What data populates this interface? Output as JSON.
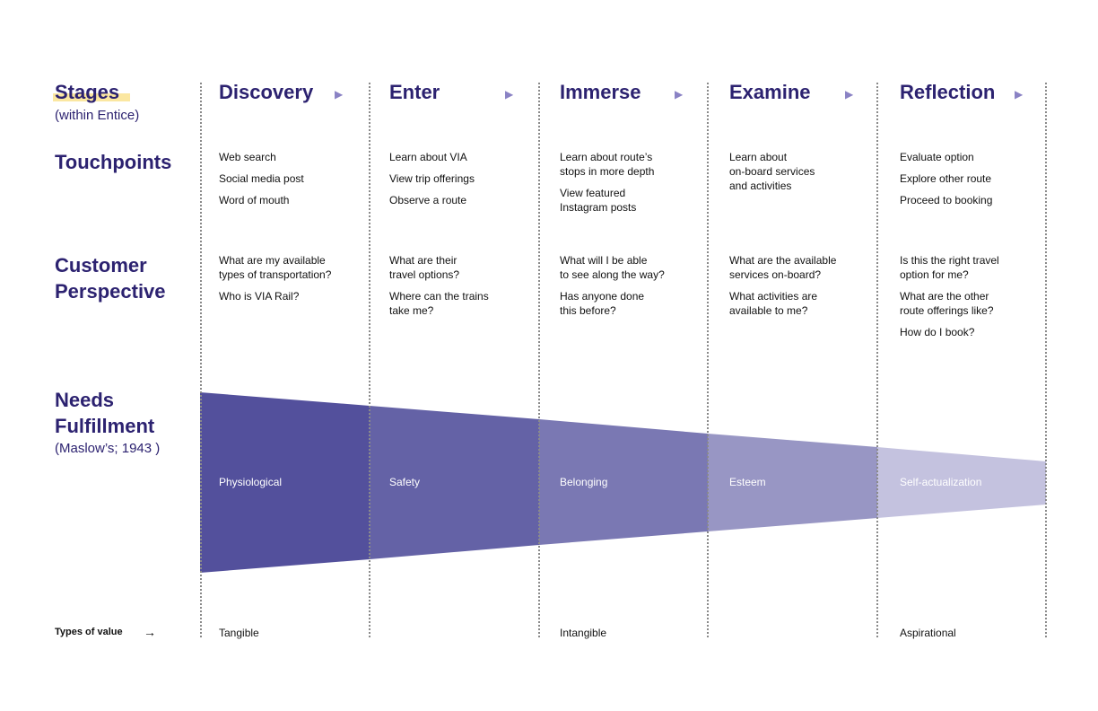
{
  "rows": {
    "stages": {
      "title": "Stages",
      "subtitle": "(within Entice)"
    },
    "touchpoints": "Touchpoints",
    "perspective": "Customer\nPerspective",
    "needs": {
      "title": "Needs\nFulfillment",
      "subtitle": "(Maslow’s; 1943 )"
    },
    "types": {
      "title": "Types of value",
      "arrow": "→"
    }
  },
  "stage_arrow": "▶",
  "stages": [
    {
      "name": "Discovery",
      "touchpoints": [
        "Web search",
        "Social media post",
        "Word of mouth"
      ],
      "questions": [
        "What are my available\ntypes of transportation?",
        "Who is VIA Rail?"
      ],
      "need": "Physiological",
      "value": "Tangible"
    },
    {
      "name": "Enter",
      "touchpoints": [
        "Learn about VIA",
        "View trip offerings",
        "Observe a route"
      ],
      "questions": [
        "What are their\ntravel options?",
        "Where can the trains\ntake me?"
      ],
      "need": "Safety",
      "value": ""
    },
    {
      "name": "Immerse",
      "touchpoints": [
        "Learn about route’s\nstops in more depth",
        "View featured\nInstagram posts"
      ],
      "questions": [
        "What will I be able\nto see along the way?",
        "Has anyone done\nthis before?"
      ],
      "need": "Belonging",
      "value": "Intangible"
    },
    {
      "name": "Examine",
      "touchpoints": [
        "Learn about\non-board services\nand activities"
      ],
      "questions": [
        "What are the available\nservices on-board?",
        "What activities are\navailable to me?"
      ],
      "need": "Esteem",
      "value": ""
    },
    {
      "name": "Reflection",
      "touchpoints": [
        "Evaluate option",
        "Explore other route",
        "Proceed to booking"
      ],
      "questions": [
        "Is this the right travel\noption for me?",
        "What are the other\nroute offerings like?",
        "How do I book?"
      ],
      "need": "Self-actualization",
      "value": "Aspirational"
    }
  ],
  "colors": {
    "funnel": [
      "#53509c",
      "#6462a6",
      "#7a78b3",
      "#9896c4",
      "#c4c2df"
    ],
    "heading": "#2c2270",
    "highlight": "#fbe7a1"
  }
}
